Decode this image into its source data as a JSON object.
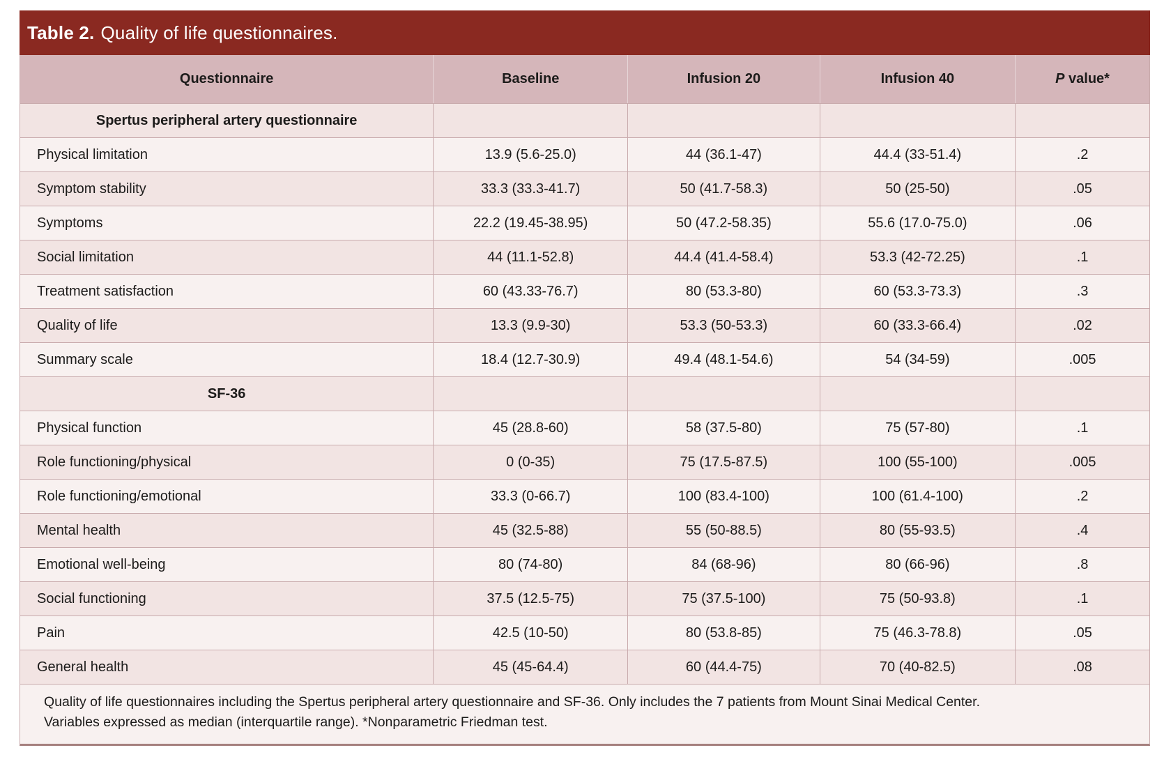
{
  "title": {
    "label": "Table 2.",
    "text": "Quality of life questionnaires."
  },
  "table": {
    "columns": [
      "Questionnaire",
      "Baseline",
      "Infusion 20",
      "Infusion 40"
    ],
    "p_column": {
      "italic_label": "P",
      "rest": " value*"
    },
    "sections": [
      {
        "header": "Spertus peripheral artery questionnaire",
        "rows": [
          {
            "label": "Physical limitation",
            "baseline": "13.9 (5.6-25.0)",
            "infusion20": "44 (36.1-47)",
            "infusion40": "44.4 (33-51.4)",
            "p_value": ".2"
          },
          {
            "label": "Symptom stability",
            "baseline": "33.3 (33.3-41.7)",
            "infusion20": "50 (41.7-58.3)",
            "infusion40": "50 (25-50)",
            "p_value": ".05"
          },
          {
            "label": "Symptoms",
            "baseline": "22.2 (19.45-38.95)",
            "infusion20": "50 (47.2-58.35)",
            "infusion40": "55.6 (17.0-75.0)",
            "p_value": ".06"
          },
          {
            "label": "Social limitation",
            "baseline": "44 (11.1-52.8)",
            "infusion20": "44.4 (41.4-58.4)",
            "infusion40": "53.3 (42-72.25)",
            "p_value": ".1"
          },
          {
            "label": "Treatment satisfaction",
            "baseline": "60 (43.33-76.7)",
            "infusion20": "80 (53.3-80)",
            "infusion40": "60 (53.3-73.3)",
            "p_value": ".3"
          },
          {
            "label": "Quality of life",
            "baseline": "13.3 (9.9-30)",
            "infusion20": "53.3 (50-53.3)",
            "infusion40": "60 (33.3-66.4)",
            "p_value": ".02"
          },
          {
            "label": "Summary scale",
            "baseline": "18.4 (12.7-30.9)",
            "infusion20": "49.4 (48.1-54.6)",
            "infusion40": "54 (34-59)",
            "p_value": ".005"
          }
        ]
      },
      {
        "header": "SF-36",
        "rows": [
          {
            "label": "Physical function",
            "baseline": "45 (28.8-60)",
            "infusion20": "58 (37.5-80)",
            "infusion40": "75 (57-80)",
            "p_value": ".1"
          },
          {
            "label": "Role functioning/physical",
            "baseline": "0 (0-35)",
            "infusion20": "75 (17.5-87.5)",
            "infusion40": "100 (55-100)",
            "p_value": ".005"
          },
          {
            "label": "Role functioning/emotional",
            "baseline": "33.3 (0-66.7)",
            "infusion20": "100 (83.4-100)",
            "infusion40": "100 (61.4-100)",
            "p_value": ".2"
          },
          {
            "label": "Mental health",
            "baseline": "45 (32.5-88)",
            "infusion20": "55 (50-88.5)",
            "infusion40": "80 (55-93.5)",
            "p_value": ".4"
          },
          {
            "label": "Emotional well-being",
            "baseline": "80 (74-80)",
            "infusion20": "84 (68-96)",
            "infusion40": "80 (66-96)",
            "p_value": ".8"
          },
          {
            "label": "Social functioning",
            "baseline": "37.5 (12.5-75)",
            "infusion20": "75 (37.5-100)",
            "infusion40": "75 (50-93.8)",
            "p_value": ".1"
          },
          {
            "label": "Pain",
            "baseline": "42.5 (10-50)",
            "infusion20": "80 (53.8-85)",
            "infusion40": "75 (46.3-78.8)",
            "p_value": ".05"
          },
          {
            "label": "General health",
            "baseline": "45 (45-64.4)",
            "infusion20": "60 (44.4-75)",
            "infusion40": "70 (40-82.5)",
            "p_value": ".08"
          }
        ]
      }
    ],
    "footnote_lines": [
      "Quality of life questionnaires including the Spertus peripheral artery questionnaire and SF-36. Only includes the 7 patients from Mount Sinai Medical Center.",
      "Variables expressed as median (interquartile range). *Nonparametric Friedman test."
    ]
  },
  "colors": {
    "title_bar": "#8a2921",
    "header_row": "#d5b6ba",
    "stripe_dark": "#f2e4e3",
    "stripe_light": "#f8f1f0",
    "grid_line": "#c9abad",
    "footer_bottom_border": "#a5807e",
    "title_text": "#ffffff",
    "body_text": "#1c1b1a"
  }
}
